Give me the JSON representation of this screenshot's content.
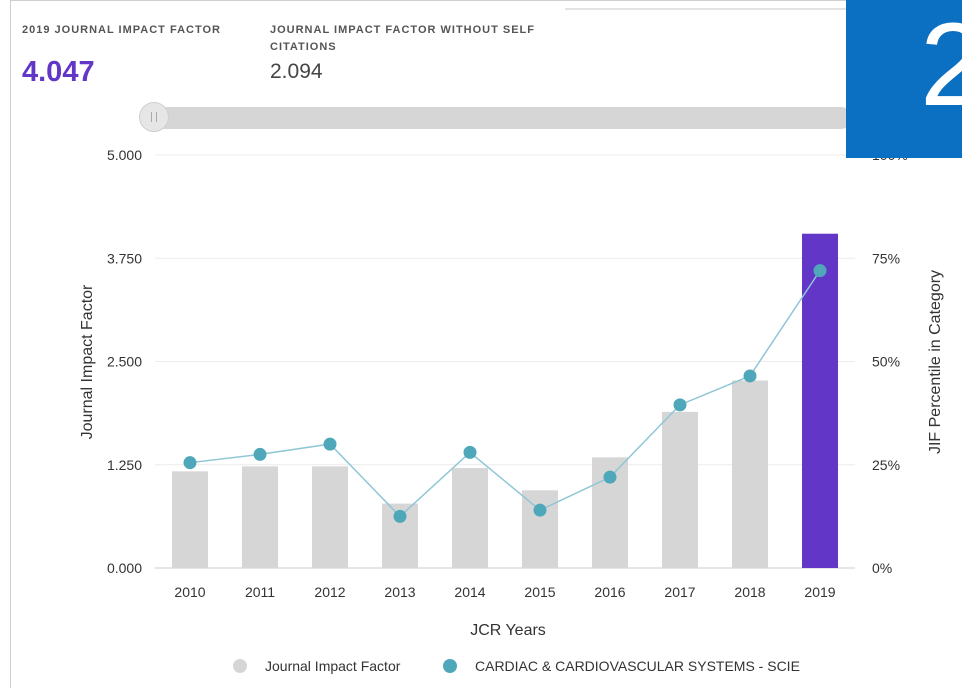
{
  "header": {
    "metric1_label": "2019 JOURNAL IMPACT FACTOR",
    "metric1_value": "4.047",
    "metric2_label": "JOURNAL IMPACT FACTOR WITHOUT SELF CITATIONS",
    "metric2_value": "2.094",
    "badge_text": "2"
  },
  "colors": {
    "accent": "#6236c7",
    "bar_default": "#d6d6d6",
    "bar_highlight": "#6236c7",
    "line": "#8fc6d6",
    "points": "#4fa8ba",
    "badge": "#0b6fc2"
  },
  "chart_data": {
    "type": "bar",
    "categories": [
      "2010",
      "2011",
      "2012",
      "2013",
      "2014",
      "2015",
      "2016",
      "2017",
      "2018",
      "2019"
    ],
    "series": [
      {
        "name": "Journal Impact Factor",
        "type": "bar",
        "axis": "left",
        "values": [
          1.17,
          1.23,
          1.23,
          0.78,
          1.21,
          0.94,
          1.34,
          1.89,
          2.27,
          4.047
        ],
        "highlight_index": 9
      },
      {
        "name": "CARDIAC & CARDIOVASCULAR SYSTEMS - SCIE",
        "type": "line",
        "axis": "right",
        "values": [
          25.5,
          27.5,
          30,
          12.5,
          28,
          14,
          22,
          39.5,
          46.5,
          72
        ]
      }
    ],
    "xlabel": "JCR Years",
    "ylabel": "Journal Impact Factor",
    "y2label": "JIF Percentile in Category",
    "ylim": [
      0,
      5
    ],
    "y2lim": [
      0,
      100
    ],
    "yticks": [
      "0.000",
      "1.250",
      "2.500",
      "3.750",
      "5.000"
    ],
    "y2ticks": [
      "0%",
      "25%",
      "50%",
      "75%",
      "100%"
    ],
    "grid": true,
    "legend": "bottom"
  }
}
